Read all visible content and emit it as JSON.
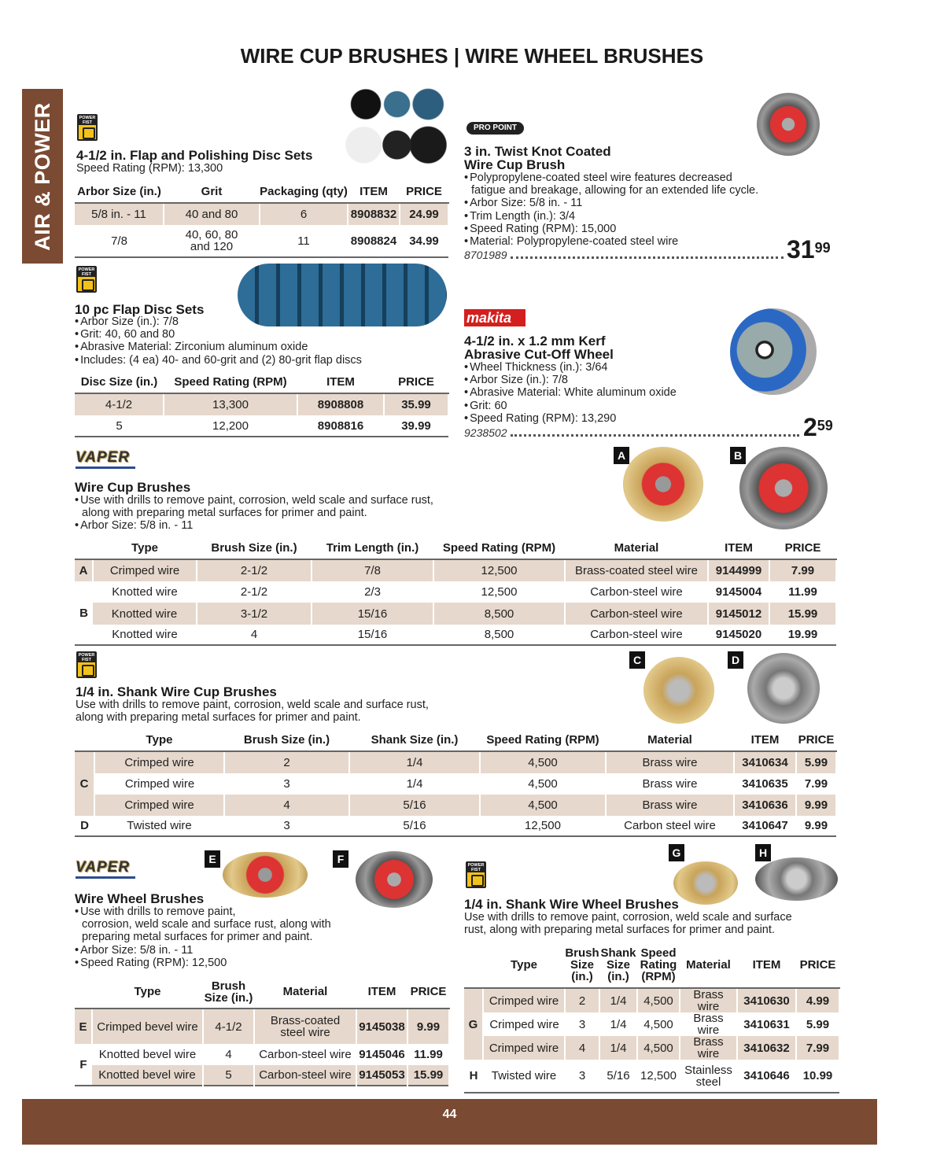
{
  "page": {
    "title": "WIRE CUP BRUSHES | WIRE WHEEL BRUSHES",
    "side_tab": "AIR & POWER",
    "page_number": "44"
  },
  "brands": {
    "power_fist": "POWER FIST",
    "vaper": "VAPER",
    "pro_point": "PRO POINT",
    "makita": "makita"
  },
  "colors": {
    "brown": "#7b4a32",
    "shade": "#e6d8cc"
  },
  "flap_polish": {
    "title": "4-1/2 in. Flap and Polishing Disc Sets",
    "subtitle": "Speed Rating (RPM): 13,300",
    "table": {
      "headers": [
        "Arbor Size (in.)",
        "Grit",
        "Packaging (qty)",
        "ITEM",
        "PRICE"
      ],
      "rows": [
        {
          "cells": [
            "5/8 in. - 11",
            "40 and 80",
            "6",
            "8908832",
            "24.99"
          ]
        },
        {
          "cells": [
            "7/8",
            "40, 60, 80\nand 120",
            "11",
            "8908824",
            "34.99"
          ]
        }
      ]
    }
  },
  "flap_disc": {
    "title": "10 pc Flap Disc Sets",
    "bullets": [
      "Arbor Size (in.): 7/8",
      "Grit: 40, 60 and 80",
      "Abrasive Material: Zirconium aluminum oxide",
      "Includes: (4 ea) 40- and 60-grit and (2) 80-grit flap discs"
    ],
    "table": {
      "headers": [
        "Disc Size (in.)",
        "Speed Rating (RPM)",
        "ITEM",
        "PRICE"
      ],
      "rows": [
        {
          "cells": [
            "4-1/2",
            "13,300",
            "8908808",
            "35.99"
          ]
        },
        {
          "cells": [
            "5",
            "12,200",
            "8908816",
            "39.99"
          ]
        }
      ]
    }
  },
  "twist_knot": {
    "title1": "3 in. Twist Knot Coated",
    "title2": "Wire Cup Brush",
    "bullets": [
      "Polypropylene-coated steel wire features decreased",
      "fatigue and breakage, allowing for an extended life cycle.",
      "Arbor Size: 5/8 in. - 11",
      "Trim Length (in.): 3/4",
      "Speed Rating (RPM): 15,000",
      "Material: Polypropylene-coated steel wire"
    ],
    "item": "8701989",
    "price_main": "31",
    "price_cents": "99"
  },
  "cutoff": {
    "title1": "4-1/2 in. x 1.2 mm Kerf",
    "title2": "Abrasive Cut-Off Wheel",
    "bullets": [
      "Wheel Thickness (in.): 3/64",
      "Arbor Size (in.): 7/8",
      "Abrasive Material: White aluminum oxide",
      "Grit: 60",
      "Speed Rating (RPM): 13,290"
    ],
    "item": "9238502",
    "price_main": "2",
    "price_cents": "59"
  },
  "wire_cup": {
    "title": "Wire Cup Brushes",
    "bullets": [
      "Use with drills to remove paint, corrosion, weld scale and surface rust,",
      "along with preparing metal surfaces for primer and paint.",
      "Arbor Size: 5/8 in. - 11"
    ],
    "tags": [
      "A",
      "B"
    ],
    "table": {
      "headers": [
        "",
        "Type",
        "Brush Size (in.)",
        "Trim Length (in.)",
        "Speed Rating (RPM)",
        "Material",
        "ITEM",
        "PRICE"
      ],
      "rows": [
        {
          "group": "A",
          "span": 1,
          "cells": [
            "Crimped wire",
            "2-1/2",
            "7/8",
            "12,500",
            "Brass-coated steel wire",
            "9144999",
            "7.99"
          ]
        },
        {
          "group": "B",
          "span": 3,
          "cells": [
            "Knotted wire",
            "2-1/2",
            "2/3",
            "12,500",
            "Carbon-steel wire",
            "9145004",
            "11.99"
          ]
        },
        {
          "cells": [
            "Knotted wire",
            "3-1/2",
            "15/16",
            "8,500",
            "Carbon-steel wire",
            "9145012",
            "15.99"
          ]
        },
        {
          "cells": [
            "Knotted wire",
            "4",
            "15/16",
            "8,500",
            "Carbon-steel wire",
            "9145020",
            "19.99"
          ]
        }
      ]
    }
  },
  "shank_cup": {
    "title": "1/4 in. Shank Wire Cup Brushes",
    "desc": [
      "Use with drills to remove paint, corrosion, weld scale and surface rust,",
      "along with preparing metal surfaces for primer and paint."
    ],
    "tags": [
      "C",
      "D"
    ],
    "table": {
      "headers": [
        "",
        "Type",
        "Brush Size (in.)",
        "Shank Size (in.)",
        "Speed Rating (RPM)",
        "Material",
        "ITEM",
        "PRICE"
      ],
      "rows": [
        {
          "group": "C",
          "span": 3,
          "cells": [
            "Crimped wire",
            "2",
            "1/4",
            "4,500",
            "Brass wire",
            "3410634",
            "5.99"
          ]
        },
        {
          "cells": [
            "Crimped wire",
            "3",
            "1/4",
            "4,500",
            "Brass wire",
            "3410635",
            "7.99"
          ]
        },
        {
          "cells": [
            "Crimped wire",
            "4",
            "5/16",
            "4,500",
            "Brass wire",
            "3410636",
            "9.99"
          ]
        },
        {
          "group": "D",
          "span": 1,
          "cells": [
            "Twisted wire",
            "3",
            "5/16",
            "12,500",
            "Carbon steel wire",
            "3410647",
            "9.99"
          ]
        }
      ]
    }
  },
  "wire_wheel": {
    "title": "Wire Wheel Brushes",
    "bullets": [
      "Use with drills to remove paint,",
      "corrosion, weld scale and surface rust, along with",
      "preparing metal surfaces for primer and paint.",
      "Arbor Size: 5/8 in. - 11",
      "Speed Rating (RPM): 12,500"
    ],
    "tags": [
      "E",
      "F"
    ],
    "table": {
      "headers": [
        "",
        "Type",
        "Brush\nSize (in.)",
        "Material",
        "ITEM",
        "PRICE"
      ],
      "rows": [
        {
          "group": "E",
          "span": 1,
          "cells": [
            "Crimped bevel wire",
            "4-1/2",
            "Brass-coated\nsteel wire",
            "9145038",
            "9.99"
          ]
        },
        {
          "group": "F",
          "span": 2,
          "cells": [
            "Knotted bevel wire",
            "4",
            "Carbon-steel wire",
            "9145046",
            "11.99"
          ]
        },
        {
          "cells": [
            "Knotted bevel wire",
            "5",
            "Carbon-steel wire",
            "9145053",
            "15.99"
          ]
        }
      ]
    }
  },
  "shank_wheel": {
    "title": "1/4 in. Shank Wire Wheel Brushes",
    "desc": [
      "Use with drills to remove paint, corrosion, weld scale and surface",
      "rust, along with preparing metal surfaces for primer and paint."
    ],
    "tags": [
      "G",
      "H"
    ],
    "table": {
      "headers": [
        "",
        "Type",
        "Brush\nSize\n(in.)",
        "Shank\nSize\n(in.)",
        "Speed\nRating\n(RPM)",
        "Material",
        "ITEM",
        "PRICE"
      ],
      "rows": [
        {
          "group": "G",
          "span": 3,
          "cells": [
            "Crimped wire",
            "2",
            "1/4",
            "4,500",
            "Brass wire",
            "3410630",
            "4.99"
          ]
        },
        {
          "cells": [
            "Crimped wire",
            "3",
            "1/4",
            "4,500",
            "Brass wire",
            "3410631",
            "5.99"
          ]
        },
        {
          "cells": [
            "Crimped wire",
            "4",
            "1/4",
            "4,500",
            "Brass wire",
            "3410632",
            "7.99"
          ]
        },
        {
          "group": "H",
          "span": 1,
          "cells": [
            "Twisted wire",
            "3",
            "5/16",
            "12,500",
            "Stainless\nsteel",
            "3410646",
            "10.99"
          ]
        }
      ]
    }
  }
}
